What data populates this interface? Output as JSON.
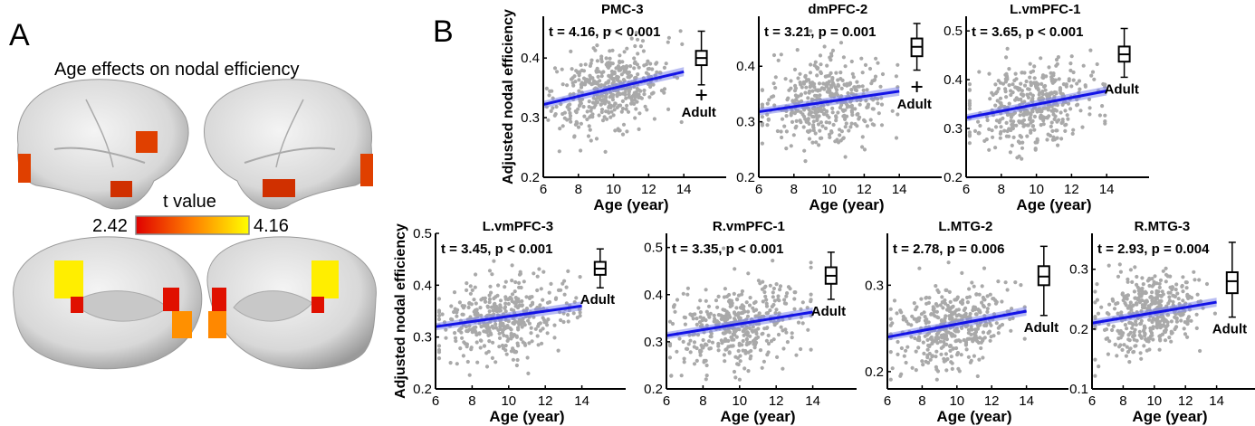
{
  "panel_a": {
    "letter": "A",
    "title": "Age effects on nodal efficiency",
    "colorbar": {
      "label": "t value",
      "min": "2.42",
      "max": "4.16",
      "colors": [
        "#e00000",
        "#ff8000",
        "#ffff00"
      ]
    }
  },
  "panel_b": {
    "letter": "B"
  },
  "chart_data": [
    {
      "type": "scatter",
      "title": "PMC-3",
      "stat": "t = 4.16, p < 0.001",
      "xlabel": "Age (year)",
      "ylabel": "Adjusted nodal efficiency",
      "xlim": [
        6,
        16
      ],
      "ylim": [
        0.2,
        0.47
      ],
      "xticks": [
        6,
        8,
        10,
        12,
        14
      ],
      "yticks": [
        0.2,
        0.3,
        0.4
      ],
      "fit": {
        "x": [
          6,
          14
        ],
        "y": [
          0.322,
          0.377
        ]
      },
      "adult_box": {
        "label": "Adult",
        "x": 15,
        "whisker_low": 0.355,
        "q1": 0.388,
        "median": 0.4,
        "q3": 0.412,
        "whisker_high": 0.445,
        "outliers": [
          0.338
        ]
      }
    },
    {
      "type": "scatter",
      "title": "dmPFC-2",
      "stat": "t = 3.21, p = 0.001",
      "xlabel": "Age (year)",
      "ylabel": "",
      "xlim": [
        6,
        16
      ],
      "ylim": [
        0.2,
        0.49
      ],
      "xticks": [
        6,
        8,
        10,
        12,
        14
      ],
      "yticks": [
        0.2,
        0.3,
        0.4
      ],
      "fit": {
        "x": [
          6,
          14
        ],
        "y": [
          0.318,
          0.355
        ]
      },
      "adult_box": {
        "label": "Adult",
        "x": 15,
        "whisker_low": 0.393,
        "q1": 0.418,
        "median": 0.435,
        "q3": 0.45,
        "whisker_high": 0.477,
        "outliers": [
          0.363
        ]
      }
    },
    {
      "type": "scatter",
      "title": "L.vmPFC-1",
      "stat": "t = 3.65, p < 0.001",
      "xlabel": "Age (year)",
      "ylabel": "",
      "xlim": [
        6,
        16
      ],
      "ylim": [
        0.2,
        0.53
      ],
      "xticks": [
        6,
        8,
        10,
        12,
        14
      ],
      "yticks": [
        0.2,
        0.3,
        0.4,
        0.5
      ],
      "fit": {
        "x": [
          6,
          14
        ],
        "y": [
          0.322,
          0.377
        ]
      },
      "adult_box": {
        "label": "Adult",
        "x": 15,
        "whisker_low": 0.405,
        "q1": 0.437,
        "median": 0.452,
        "q3": 0.468,
        "whisker_high": 0.505,
        "outliers": []
      }
    },
    {
      "type": "scatter",
      "title": "L.vmPFC-3",
      "stat": "t = 3.45, p < 0.001",
      "xlabel": "Age (year)",
      "ylabel": "Adjusted nodal efficiency",
      "xlim": [
        6,
        16
      ],
      "ylim": [
        0.2,
        0.5
      ],
      "xticks": [
        6,
        8,
        10,
        12,
        14
      ],
      "yticks": [
        0.2,
        0.3,
        0.4,
        0.5
      ],
      "fit": {
        "x": [
          6,
          14
        ],
        "y": [
          0.32,
          0.36
        ]
      },
      "adult_box": {
        "label": "Adult",
        "x": 15,
        "whisker_low": 0.395,
        "q1": 0.42,
        "median": 0.432,
        "q3": 0.445,
        "whisker_high": 0.47,
        "outliers": []
      }
    },
    {
      "type": "scatter",
      "title": "R.vmPFC-1",
      "stat": "t = 3.35, p < 0.001",
      "xlabel": "Age (year)",
      "ylabel": "",
      "xlim": [
        6,
        16
      ],
      "ylim": [
        0.2,
        0.53
      ],
      "xticks": [
        6,
        8,
        10,
        12,
        14
      ],
      "yticks": [
        0.2,
        0.3,
        0.4,
        0.5
      ],
      "fit": {
        "x": [
          6,
          14
        ],
        "y": [
          0.313,
          0.363
        ]
      },
      "adult_box": {
        "label": "Adult",
        "x": 15,
        "whisker_low": 0.39,
        "q1": 0.423,
        "median": 0.44,
        "q3": 0.458,
        "whisker_high": 0.49,
        "outliers": []
      }
    },
    {
      "type": "scatter",
      "title": "L.MTG-2",
      "stat": "t = 2.78, p = 0.006",
      "xlabel": "Age (year)",
      "ylabel": "",
      "xlim": [
        6,
        16
      ],
      "ylim": [
        0.18,
        0.36
      ],
      "xticks": [
        6,
        8,
        10,
        12,
        14
      ],
      "yticks": [
        0.2,
        0.3
      ],
      "fit": {
        "x": [
          6,
          14
        ],
        "y": [
          0.24,
          0.27
        ]
      },
      "adult_box": {
        "label": "Adult",
        "x": 15,
        "whisker_low": 0.265,
        "q1": 0.3,
        "median": 0.31,
        "q3": 0.322,
        "whisker_high": 0.345,
        "outliers": []
      }
    },
    {
      "type": "scatter",
      "title": "R.MTG-3",
      "stat": "t = 2.93, p = 0.004",
      "xlabel": "Age (year)",
      "ylabel": "",
      "xlim": [
        6,
        16
      ],
      "ylim": [
        0.1,
        0.36
      ],
      "xticks": [
        6,
        8,
        10,
        12,
        14
      ],
      "yticks": [
        0.1,
        0.2,
        0.3
      ],
      "fit": {
        "x": [
          6,
          14
        ],
        "y": [
          0.21,
          0.245
        ]
      },
      "adult_box": {
        "label": "Adult",
        "x": 15,
        "whisker_low": 0.22,
        "q1": 0.26,
        "median": 0.28,
        "q3": 0.295,
        "whisker_high": 0.345,
        "outliers": []
      }
    }
  ]
}
